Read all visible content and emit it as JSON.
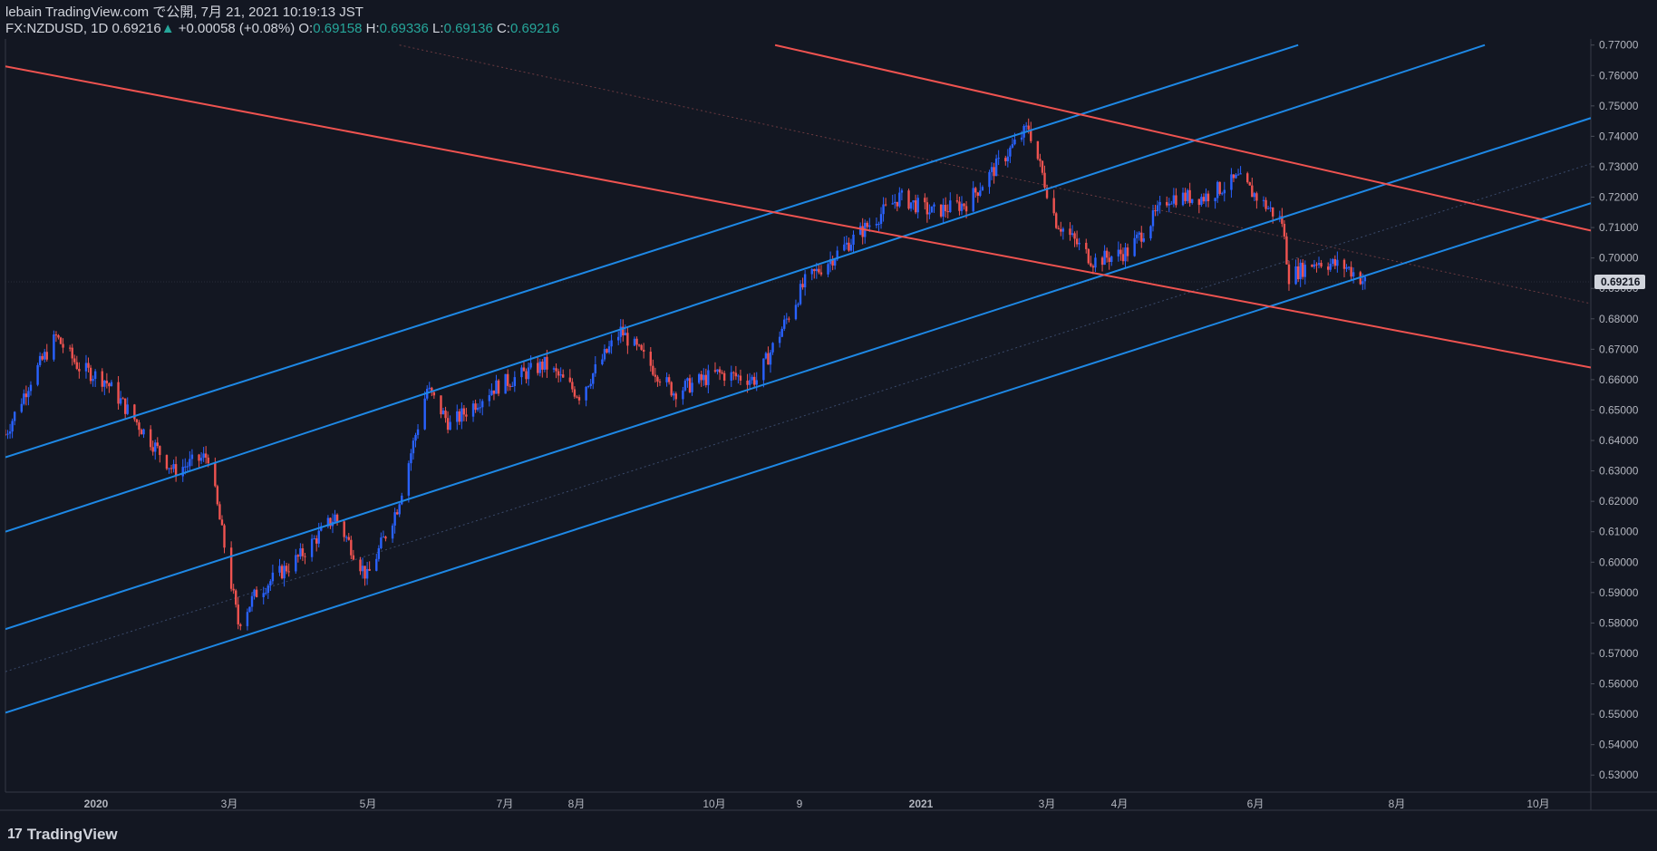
{
  "header": {
    "published": "lebain TradingView.com で公開, 7月 21, 2021 10:19:13 JST",
    "symbol": "FX:NZDUSD, 1D",
    "price": "0.69216",
    "change_arrow": "▲",
    "change": "+0.00058 (+0.08%)",
    "o_label": "O:",
    "o_value": "0.69158",
    "h_label": "H:",
    "h_value": "0.69336",
    "l_label": "L:",
    "l_value": "0.69136",
    "c_label": "C:",
    "c_value": "0.69216"
  },
  "footer": {
    "logo_text": "TradingView",
    "logo_icon": "tradingview-logo-icon"
  },
  "colors": {
    "background": "#131722",
    "up": "#2962ff",
    "down": "#ef5350",
    "channel_blue": "#1e88e5",
    "channel_red": "#ef5350",
    "axis_text": "#b2b5be",
    "label_bg": "#d1d4dc",
    "label_text": "#131722"
  },
  "chart_data": {
    "type": "candlestick",
    "symbol": "FX:NZDUSD",
    "interval": "1D",
    "x_ticks": [
      "2020",
      "3月",
      "5月",
      "7月",
      "8月",
      "10月",
      "9",
      "2021",
      "3月",
      "4月",
      "6月",
      "8月",
      "10月"
    ],
    "ylim": [
      0.525,
      0.772
    ],
    "y_ticks": [
      "0.53000",
      "0.54000",
      "0.55000",
      "0.56000",
      "0.57000",
      "0.58000",
      "0.59000",
      "0.60000",
      "0.61000",
      "0.62000",
      "0.63000",
      "0.64000",
      "0.65000",
      "0.66000",
      "0.67000",
      "0.68000",
      "0.69000",
      "0.70000",
      "0.71000",
      "0.72000",
      "0.73000",
      "0.74000",
      "0.75000",
      "0.76000",
      "0.77000"
    ],
    "y_tick_values": [
      0.53,
      0.54,
      0.55,
      0.56,
      0.57,
      0.58,
      0.59,
      0.6,
      0.61,
      0.62,
      0.63,
      0.64,
      0.65,
      0.66,
      0.67,
      0.68,
      0.69,
      0.7,
      0.71,
      0.72,
      0.73,
      0.74,
      0.75,
      0.76,
      0.77
    ],
    "last_price_label": "0.69216",
    "last_price": 0.69216,
    "price_path": [
      [
        "2019-12-09",
        0.642
      ],
      [
        "2019-12-20",
        0.66
      ],
      [
        "2019-12-31",
        0.674
      ],
      [
        "2020-01-10",
        0.664
      ],
      [
        "2020-01-21",
        0.66
      ],
      [
        "2020-02-03",
        0.647
      ],
      [
        "2020-02-20",
        0.63
      ],
      [
        "2020-03-06",
        0.635
      ],
      [
        "2020-03-19",
        0.58
      ],
      [
        "2020-03-27",
        0.59
      ],
      [
        "2020-04-15",
        0.602
      ],
      [
        "2020-04-30",
        0.615
      ],
      [
        "2020-05-14",
        0.595
      ],
      [
        "2020-05-27",
        0.618
      ],
      [
        "2020-06-09",
        0.657
      ],
      [
        "2020-06-19",
        0.645
      ],
      [
        "2020-07-07",
        0.657
      ],
      [
        "2020-07-30",
        0.665
      ],
      [
        "2020-08-14",
        0.655
      ],
      [
        "2020-09-01",
        0.676
      ],
      [
        "2020-09-24",
        0.656
      ],
      [
        "2020-10-13",
        0.662
      ],
      [
        "2020-10-30",
        0.66
      ],
      [
        "2020-11-20",
        0.692
      ],
      [
        "2020-12-09",
        0.705
      ],
      [
        "2020-12-31",
        0.72
      ],
      [
        "2021-01-14",
        0.715
      ],
      [
        "2021-01-29",
        0.718
      ],
      [
        "2021-02-25",
        0.743
      ],
      [
        "2021-03-09",
        0.712
      ],
      [
        "2021-03-25",
        0.699
      ],
      [
        "2021-04-09",
        0.702
      ],
      [
        "2021-04-27",
        0.72
      ],
      [
        "2021-05-12",
        0.72
      ],
      [
        "2021-05-27",
        0.726
      ],
      [
        "2021-06-15",
        0.712
      ],
      [
        "2021-06-18",
        0.694
      ],
      [
        "2021-06-30",
        0.699
      ],
      [
        "2021-07-13",
        0.697
      ],
      [
        "2021-07-21",
        0.6922
      ]
    ],
    "channel_lines": {
      "blue": [
        {
          "from": [
            "2019-12-09",
            0.6345
          ],
          "to": [
            "2021-06-22",
            0.77
          ]
        },
        {
          "from": [
            "2019-12-09",
            0.61
          ],
          "to": [
            "2021-09-11",
            0.77
          ]
        },
        {
          "from": [
            "2019-12-09",
            0.578
          ],
          "to": [
            "2021-10-27",
            0.746
          ]
        },
        {
          "from": [
            "2019-12-09",
            0.5505
          ],
          "to": [
            "2021-10-27",
            0.718
          ]
        }
      ],
      "red": [
        {
          "from": [
            "2020-11-07",
            0.77
          ],
          "to": [
            "2021-10-27",
            0.709
          ]
        },
        {
          "from": [
            "2019-12-09",
            0.763
          ],
          "to": [
            "2021-10-27",
            0.664
          ]
        }
      ],
      "dotted": [
        {
          "from": [
            "2019-12-09",
            0.564
          ],
          "to": [
            "2021-10-27",
            0.731
          ]
        },
        {
          "from": [
            "2020-05-28",
            0.77
          ],
          "to": [
            "2021-10-27",
            0.685
          ]
        }
      ]
    }
  }
}
